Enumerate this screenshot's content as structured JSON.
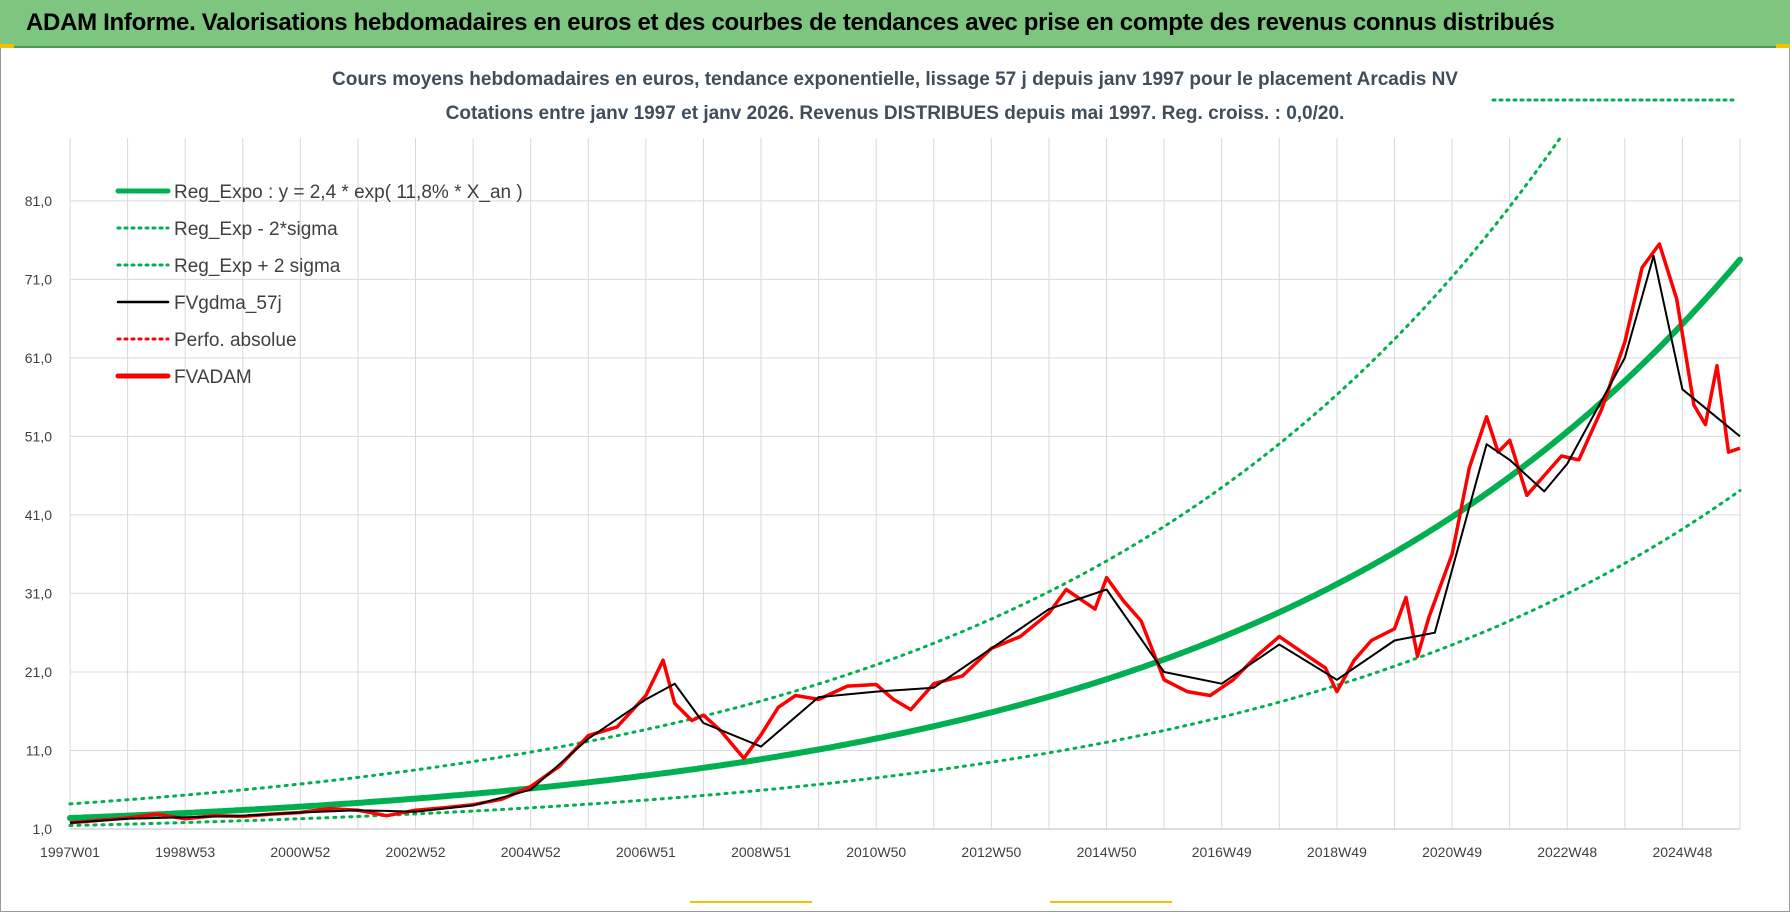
{
  "header": {
    "title": "ADAM Informe. Valorisations hebdomadaires en euros et des courbes de tendances avec prise en compte des revenus connus distribués"
  },
  "colors": {
    "header_bg": "#7ec57f",
    "reg_expo": "#00b050",
    "sigma_band": "#00b050",
    "fvgdma": "#000000",
    "perfo": "#ff0000",
    "fvadam": "#ff0000",
    "grid": "#d9d9d9"
  },
  "chart_data": {
    "type": "line",
    "title_line1": "Cours moyens hebdomadaires en euros, tendance exponentielle, lissage 57 j depuis janv 1997  pour le placement Arcadis NV",
    "title_line2": "Cotations entre janv 1997 et janv 2026. Revenus DISTRIBUES depuis mai 1997. Reg. croiss. : 0,0/20.",
    "xlabel": "",
    "ylabel": "",
    "xlim": [
      1997.0,
      2026.0
    ],
    "ylim": [
      1.0,
      89.0
    ],
    "grid": true,
    "legend_placement": "top-left",
    "y_ticks": [
      "1,0",
      "11,0",
      "21,0",
      "31,0",
      "41,0",
      "51,0",
      "61,0",
      "71,0",
      "81,0"
    ],
    "y_tick_values": [
      1,
      11,
      21,
      31,
      41,
      51,
      61,
      71,
      81
    ],
    "x_ticks": [
      "1997W01",
      "1998W53",
      "2000W52",
      "2002W52",
      "2004W52",
      "2006W51",
      "2008W51",
      "2010W50",
      "2012W50",
      "2014W50",
      "2016W49",
      "2018W49",
      "2020W49",
      "2022W48",
      "2024W48"
    ],
    "x_tick_values": [
      1997.0,
      1999.0,
      2001.0,
      2003.0,
      2005.0,
      2007.0,
      2009.0,
      2011.0,
      2013.0,
      2015.0,
      2017.0,
      2019.0,
      2021.0,
      2023.0,
      2025.0
    ],
    "legend": [
      {
        "label": "Reg_Expo : y = 2,4 * exp( 11,8% *  X_an )",
        "color": "#00b050",
        "style": "solid-thick"
      },
      {
        "label": "Reg_Exp - 2*sigma",
        "color": "#00b050",
        "style": "dotted"
      },
      {
        "label": "Reg_Exp + 2 sigma",
        "color": "#00b050",
        "style": "dotted"
      },
      {
        "label": "FVgdma_57j",
        "color": "#000000",
        "style": "solid"
      },
      {
        "label": "Perfo. absolue",
        "color": "#ff0000",
        "style": "dotted"
      },
      {
        "label": "FVADAM",
        "color": "#ff0000",
        "style": "solid-thick"
      }
    ],
    "regression": {
      "a": 2.4,
      "rate": 0.118,
      "x_origin": 1997.0
    },
    "series": [
      {
        "name": "FVADAM",
        "x": [
          1997.0,
          1997.5,
          1998.0,
          1998.5,
          1999.0,
          1999.5,
          2000.0,
          2000.5,
          2001.0,
          2001.5,
          2002.0,
          2002.5,
          2003.0,
          2003.5,
          2004.0,
          2004.5,
          2005.0,
          2005.5,
          2006.0,
          2006.5,
          2007.0,
          2007.3,
          2007.5,
          2007.8,
          2008.0,
          2008.3,
          2008.7,
          2009.0,
          2009.3,
          2009.6,
          2010.0,
          2010.5,
          2011.0,
          2011.3,
          2011.6,
          2012.0,
          2012.5,
          2013.0,
          2013.5,
          2014.0,
          2014.3,
          2014.6,
          2014.8,
          2015.0,
          2015.3,
          2015.6,
          2016.0,
          2016.4,
          2016.8,
          2017.2,
          2017.6,
          2018.0,
          2018.4,
          2018.8,
          2019.0,
          2019.3,
          2019.6,
          2020.0,
          2020.2,
          2020.4,
          2020.6,
          2021.0,
          2021.3,
          2021.6,
          2021.8,
          2022.0,
          2022.3,
          2022.6,
          2022.9,
          2023.2,
          2023.6,
          2024.0,
          2024.3,
          2024.6,
          2024.9,
          2025.2,
          2025.4,
          2025.6,
          2025.8,
          2026.0
        ],
        "values": [
          1.8,
          2.1,
          2.4,
          2.9,
          2.3,
          2.7,
          2.6,
          2.9,
          3.1,
          3.6,
          3.4,
          2.7,
          3.4,
          3.7,
          4.1,
          4.8,
          6.4,
          9.0,
          12.9,
          14.0,
          18.0,
          22.5,
          17.0,
          14.8,
          15.5,
          13.5,
          10.0,
          13.0,
          16.5,
          18.0,
          17.5,
          19.2,
          19.4,
          17.5,
          16.2,
          19.5,
          20.5,
          24.0,
          25.5,
          28.5,
          31.5,
          30.0,
          29.0,
          33.0,
          30.0,
          27.5,
          20.0,
          18.5,
          18.0,
          20.0,
          23.0,
          25.5,
          23.5,
          21.5,
          18.5,
          22.5,
          25.0,
          26.5,
          30.5,
          23.0,
          28.0,
          36.0,
          47.0,
          53.5,
          49.0,
          50.5,
          43.5,
          46.0,
          48.5,
          48.0,
          54.5,
          63.0,
          72.5,
          75.5,
          68.5,
          55.0,
          52.5,
          60.0,
          49.0,
          49.5
        ]
      },
      {
        "name": "FVgdma_57j",
        "x": [
          1997.0,
          1998.0,
          1999.0,
          2000.0,
          2001.0,
          2002.0,
          2003.0,
          2004.0,
          2005.0,
          2006.0,
          2007.0,
          2007.5,
          2008.0,
          2009.0,
          2010.0,
          2011.0,
          2012.0,
          2013.0,
          2014.0,
          2015.0,
          2016.0,
          2017.0,
          2018.0,
          2019.0,
          2020.0,
          2020.7,
          2021.0,
          2021.6,
          2022.0,
          2022.6,
          2023.0,
          2024.0,
          2024.5,
          2025.0,
          2025.5,
          2026.0
        ],
        "values": [
          1.8,
          2.3,
          2.5,
          2.7,
          3.1,
          3.4,
          3.2,
          4.0,
          6.0,
          12.5,
          17.5,
          19.5,
          14.5,
          11.5,
          17.8,
          18.5,
          19.0,
          24.0,
          29.0,
          31.5,
          21.0,
          19.5,
          24.5,
          20.0,
          25.0,
          26.0,
          34.0,
          50.0,
          48.0,
          44.0,
          47.5,
          61.0,
          74.0,
          57.0,
          54.0,
          51.0
        ]
      }
    ]
  }
}
